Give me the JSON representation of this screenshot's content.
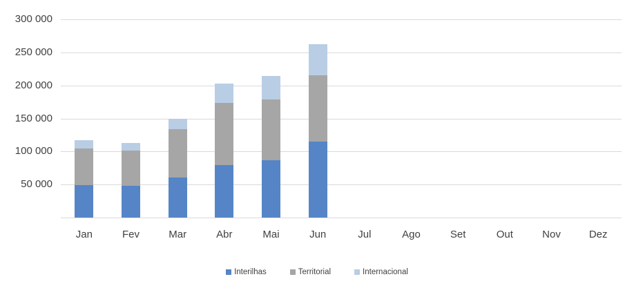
{
  "chart_data": {
    "type": "bar",
    "stacked": true,
    "title": "",
    "categories": [
      "Jan",
      "Fev",
      "Mar",
      "Abr",
      "Mai",
      "Jun",
      "Jul",
      "Ago",
      "Set",
      "Out",
      "Nov",
      "Dez"
    ],
    "series": [
      {
        "name": "Interilhas",
        "color": "#5585C6",
        "values": [
          49000,
          48000,
          61000,
          79000,
          87000,
          115000,
          0,
          0,
          0,
          0,
          0,
          0
        ]
      },
      {
        "name": "Territorial",
        "color": "#A6A6A6",
        "values": [
          56000,
          53000,
          73000,
          95000,
          92000,
          100000,
          0,
          0,
          0,
          0,
          0,
          0
        ]
      },
      {
        "name": "Internacional",
        "color": "#B9CDE5",
        "values": [
          12000,
          12000,
          15000,
          29000,
          35000,
          47000,
          0,
          0,
          0,
          0,
          0,
          0
        ]
      }
    ],
    "xlabel": "",
    "ylabel": "",
    "ylim": [
      0,
      300000
    ],
    "ytick_step": 50000,
    "ytick_labels": [
      "50 000",
      "100 000",
      "150 000",
      "200 000",
      "250 000",
      "300 000"
    ],
    "zero_tick_label": "",
    "grid": true,
    "legend_position": "bottom"
  },
  "colors": {
    "background": "#FFFFFF",
    "gridline": "#D9D9D9",
    "axis_line": "#D9D9D9",
    "axis_text": "#404040",
    "legend_text": "#404040"
  }
}
